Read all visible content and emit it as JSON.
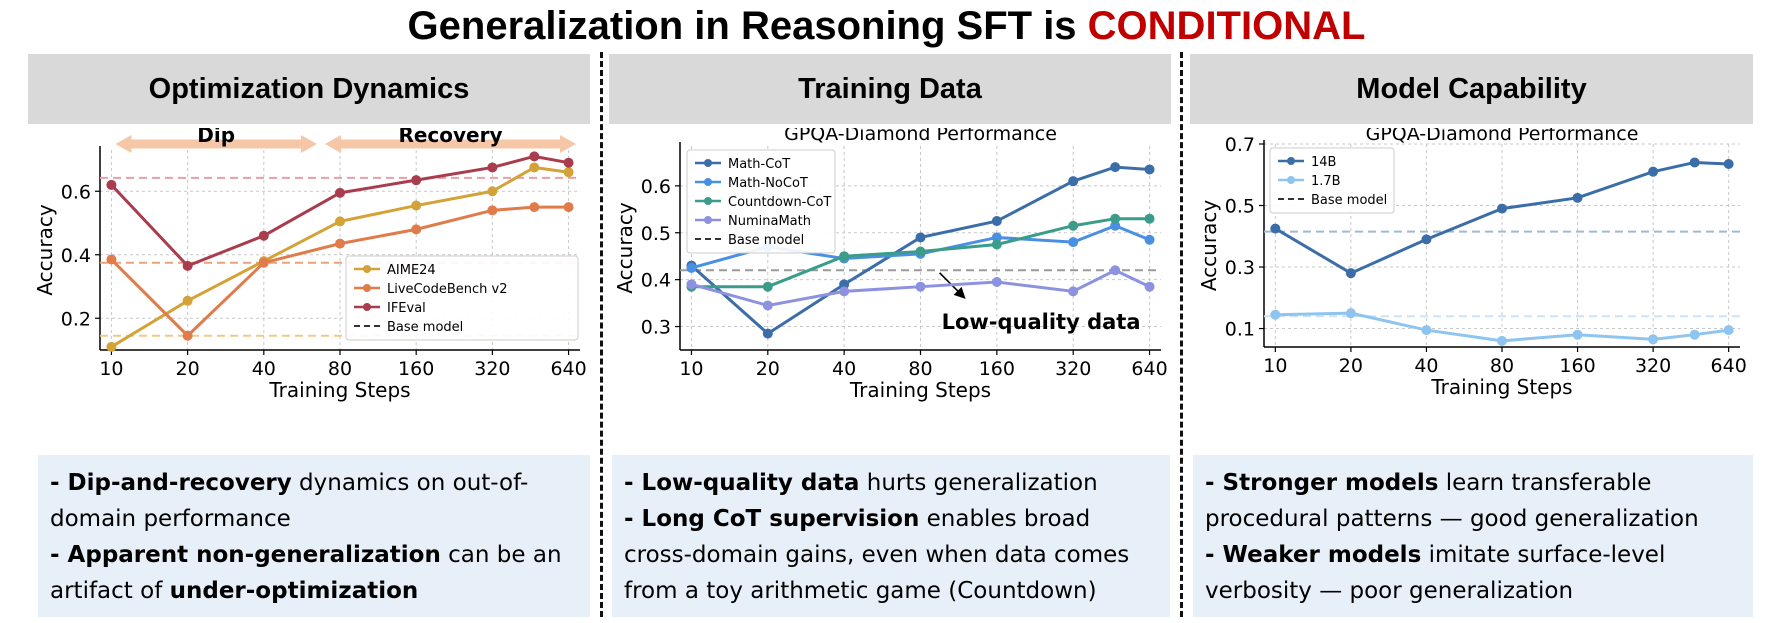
{
  "title": {
    "main": "Generalization in Reasoning SFT is ",
    "highlight": "CONDITIONAL"
  },
  "colors": {
    "highlight": "#c00000",
    "header_bg": "#d9d9d9",
    "note_bg": "#e7f0f9"
  },
  "panels": [
    {
      "heading": "Optimization Dynamics",
      "note_lines": [
        [
          {
            "b": "- Dip-and-recovery"
          },
          {
            "t": " dynamics on out-of-"
          }
        ],
        [
          {
            "t": "domain performance"
          }
        ],
        [
          {
            "b": "- Apparent non-generalization"
          },
          {
            "t": " can be an"
          }
        ],
        [
          {
            "t": "artifact of "
          },
          {
            "b": "under-optimization"
          }
        ]
      ]
    },
    {
      "heading": "Training Data",
      "note_lines": [
        [
          {
            "b": "- Low-quality data"
          },
          {
            "t": " hurts generalization"
          }
        ],
        [
          {
            "b": "- Long CoT supervision"
          },
          {
            "t": " enables broad"
          }
        ],
        [
          {
            "t": "cross-domain gains, even when data comes"
          }
        ],
        [
          {
            "t": "from a toy arithmetic game (Countdown)"
          }
        ]
      ]
    },
    {
      "heading": "Model Capability",
      "note_lines": [
        [
          {
            "b": "- Stronger models"
          },
          {
            "t": " learn transferable"
          }
        ],
        [
          {
            "t": "procedural patterns — good generalization"
          }
        ],
        [
          {
            "b": "- Weaker models"
          },
          {
            "t": " imitate surface-level"
          }
        ],
        [
          {
            "t": "verbosity — poor generalization"
          }
        ]
      ]
    }
  ],
  "chart_data": [
    {
      "type": "line",
      "title": "",
      "xlabel": "Training Steps",
      "ylabel": "Accuracy",
      "x_ticks": [
        "10",
        "20",
        "40",
        "80",
        "160",
        "320",
        "640"
      ],
      "x_tick_positions": [
        0,
        1,
        2,
        3,
        4,
        5,
        6
      ],
      "y_ticks": [
        0.2,
        0.4,
        0.6
      ],
      "xlim": [
        -0.15,
        6.15
      ],
      "ylim": [
        0.1,
        0.73
      ],
      "grid": true,
      "legend_position": "lower-right",
      "annotations": [
        {
          "label": "Dip",
          "x_range": [
            0,
            2.75
          ],
          "color": "#f6c7a6"
        },
        {
          "label": "Recovery",
          "x_range": [
            2.75,
            6.15
          ],
          "color": "#f6c7a6"
        }
      ],
      "series": [
        {
          "name": "AIME24",
          "color": "#d4a337",
          "x": [
            0,
            1,
            2,
            3,
            4,
            5,
            5.55,
            6
          ],
          "y": [
            0.11,
            0.255,
            0.38,
            0.505,
            0.555,
            0.6,
            0.675,
            0.66
          ]
        },
        {
          "name": "LiveCodeBench v2",
          "color": "#e07b4a",
          "x": [
            0,
            1,
            2,
            3,
            4,
            5,
            5.55,
            6
          ],
          "y": [
            0.385,
            0.145,
            0.375,
            0.435,
            0.48,
            0.54,
            0.55,
            0.55
          ]
        },
        {
          "name": "IFEval",
          "color": "#a93c4d",
          "x": [
            0,
            1,
            2,
            3,
            4,
            5,
            5.55,
            6
          ],
          "y": [
            0.62,
            0.365,
            0.46,
            0.595,
            0.635,
            0.675,
            0.71,
            0.69
          ]
        }
      ],
      "baselines": [
        {
          "color": "#e8a0a8",
          "y": 0.642
        },
        {
          "color": "#e8a27c",
          "y": 0.375
        },
        {
          "color": "#f0c987",
          "y": 0.145
        }
      ],
      "baseline_legend": "Base model"
    },
    {
      "type": "line",
      "title": "GPQA-Diamond Performance",
      "xlabel": "Training Steps",
      "ylabel": "Accuracy",
      "x_ticks": [
        "10",
        "20",
        "40",
        "80",
        "160",
        "320",
        "640"
      ],
      "x_tick_positions": [
        0,
        1,
        2,
        3,
        4,
        5,
        6
      ],
      "y_ticks": [
        0.3,
        0.4,
        0.5,
        0.6
      ],
      "xlim": [
        -0.15,
        6.15
      ],
      "ylim": [
        0.25,
        0.685
      ],
      "grid": true,
      "legend_position": "upper-left",
      "annotations": [
        {
          "label": "Low-quality data",
          "x": 3.8,
          "y": 0.325
        }
      ],
      "series": [
        {
          "name": "Math-CoT",
          "color": "#3b6ea8",
          "x": [
            0,
            1,
            2,
            3,
            4,
            5,
            5.55,
            6
          ],
          "y": [
            0.43,
            0.285,
            0.39,
            0.49,
            0.525,
            0.61,
            0.64,
            0.635
          ]
        },
        {
          "name": "Math-NoCoT",
          "color": "#4a90e2",
          "x": [
            0,
            1,
            2,
            3,
            4,
            5,
            5.55,
            6
          ],
          "y": [
            0.425,
            0.47,
            0.445,
            0.455,
            0.49,
            0.48,
            0.515,
            0.485
          ]
        },
        {
          "name": "Countdown-CoT",
          "color": "#3b9c8a",
          "x": [
            0,
            1,
            2,
            3,
            4,
            5,
            5.55,
            6
          ],
          "y": [
            0.385,
            0.385,
            0.45,
            0.46,
            0.475,
            0.515,
            0.53,
            0.53
          ]
        },
        {
          "name": "NuminaMath",
          "color": "#8c92e0",
          "x": [
            0,
            1,
            2,
            3,
            4,
            5,
            5.55,
            6
          ],
          "y": [
            0.39,
            0.345,
            0.375,
            0.385,
            0.395,
            0.375,
            0.42,
            0.385
          ]
        }
      ],
      "baselines": [
        {
          "color": "#9a9a9a",
          "y": 0.42
        }
      ],
      "baseline_legend": "Base model"
    },
    {
      "type": "line",
      "title": "GPQA-Diamond Performance",
      "xlabel": "Training Steps",
      "ylabel": "Accuracy",
      "x_ticks": [
        "10",
        "20",
        "40",
        "80",
        "160",
        "320",
        "640"
      ],
      "x_tick_positions": [
        0,
        1,
        2,
        3,
        4,
        5,
        6
      ],
      "y_ticks": [
        0.1,
        0.3,
        0.5,
        0.7
      ],
      "xlim": [
        -0.15,
        6.15
      ],
      "ylim": [
        0.04,
        0.7
      ],
      "grid": true,
      "legend_position": "upper-left",
      "annotations": [],
      "series": [
        {
          "name": "14B",
          "color": "#3b6ea8",
          "x": [
            0,
            1,
            2,
            3,
            4,
            5,
            5.55,
            6
          ],
          "y": [
            0.425,
            0.28,
            0.39,
            0.49,
            0.525,
            0.61,
            0.64,
            0.635
          ]
        },
        {
          "name": "1.7B",
          "color": "#8ec5f0",
          "x": [
            0,
            1,
            2,
            3,
            4,
            5,
            5.55,
            6
          ],
          "y": [
            0.145,
            0.15,
            0.095,
            0.06,
            0.08,
            0.065,
            0.08,
            0.095
          ]
        }
      ],
      "baselines": [
        {
          "color": "#9dbad6",
          "y": 0.415
        },
        {
          "color": "#c9e3f7",
          "y": 0.14
        }
      ],
      "baseline_legend": "Base model"
    }
  ]
}
